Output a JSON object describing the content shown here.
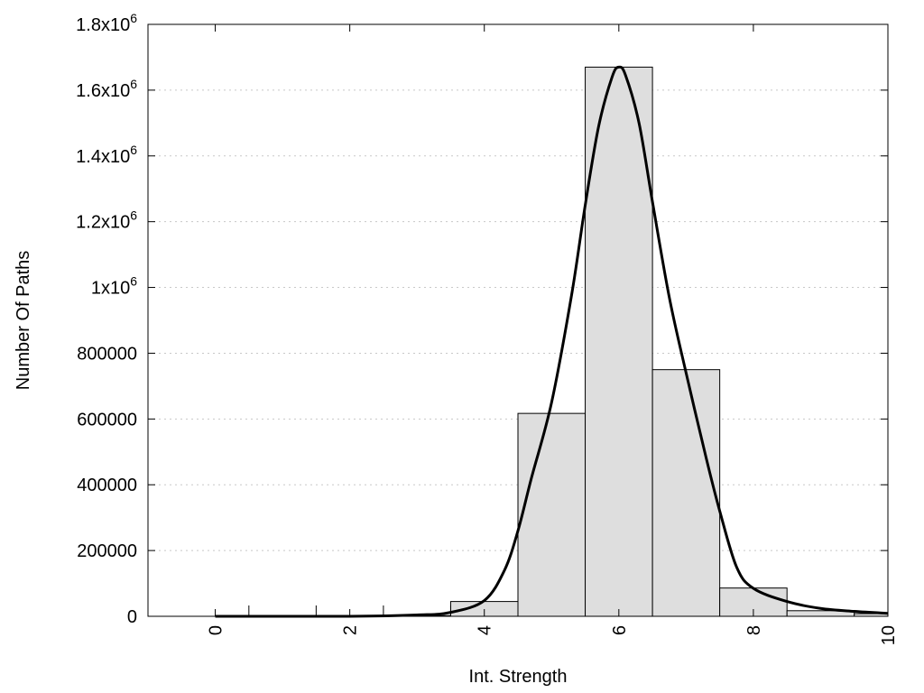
{
  "chart_data": {
    "type": "bar",
    "xlabel": "Int. Strength",
    "ylabel": "Number Of Paths",
    "xlim": [
      -1,
      10
    ],
    "ylim": [
      0,
      1800000
    ],
    "grid": "horizontal dotted",
    "x_ticks": [
      {
        "value": 0,
        "label": "0"
      },
      {
        "value": 2,
        "label": "2"
      },
      {
        "value": 4,
        "label": "4"
      },
      {
        "value": 6,
        "label": "6"
      },
      {
        "value": 8,
        "label": "8"
      },
      {
        "value": 10,
        "label": "10"
      }
    ],
    "y_ticks": [
      {
        "value": 0,
        "base": "0",
        "exp": ""
      },
      {
        "value": 200000,
        "base": "200000",
        "exp": ""
      },
      {
        "value": 400000,
        "base": "400000",
        "exp": ""
      },
      {
        "value": 600000,
        "base": "600000",
        "exp": ""
      },
      {
        "value": 800000,
        "base": "800000",
        "exp": ""
      },
      {
        "value": 1000000,
        "base": "1x10",
        "exp": "6"
      },
      {
        "value": 1200000,
        "base": "1.2x10",
        "exp": "6"
      },
      {
        "value": 1400000,
        "base": "1.4x10",
        "exp": "6"
      },
      {
        "value": 1600000,
        "base": "1.6x10",
        "exp": "6"
      },
      {
        "value": 1800000,
        "base": "1.8x10",
        "exp": "6"
      }
    ],
    "bars": [
      {
        "x": 0,
        "value": 0
      },
      {
        "x": 1,
        "value": 0
      },
      {
        "x": 2,
        "value": 500
      },
      {
        "x": 3,
        "value": 2000
      },
      {
        "x": 4,
        "value": 45000
      },
      {
        "x": 5,
        "value": 617000
      },
      {
        "x": 6,
        "value": 1670000
      },
      {
        "x": 7,
        "value": 750000
      },
      {
        "x": 8,
        "value": 86000
      },
      {
        "x": 9,
        "value": 17000
      },
      {
        "x": 10,
        "value": 8000
      }
    ],
    "fit_curve": [
      {
        "x": 0,
        "y": 0
      },
      {
        "x": 2,
        "y": 0
      },
      {
        "x": 3,
        "y": 4000
      },
      {
        "x": 3.5,
        "y": 12000
      },
      {
        "x": 4,
        "y": 48000
      },
      {
        "x": 4.3,
        "y": 140000
      },
      {
        "x": 4.5,
        "y": 260000
      },
      {
        "x": 4.7,
        "y": 420000
      },
      {
        "x": 5.0,
        "y": 650000
      },
      {
        "x": 5.3,
        "y": 980000
      },
      {
        "x": 5.5,
        "y": 1250000
      },
      {
        "x": 5.7,
        "y": 1490000
      },
      {
        "x": 5.9,
        "y": 1640000
      },
      {
        "x": 6.0,
        "y": 1670000
      },
      {
        "x": 6.1,
        "y": 1645000
      },
      {
        "x": 6.3,
        "y": 1500000
      },
      {
        "x": 6.5,
        "y": 1260000
      },
      {
        "x": 6.75,
        "y": 970000
      },
      {
        "x": 7.0,
        "y": 740000
      },
      {
        "x": 7.3,
        "y": 480000
      },
      {
        "x": 7.5,
        "y": 320000
      },
      {
        "x": 7.75,
        "y": 150000
      },
      {
        "x": 8.0,
        "y": 85000
      },
      {
        "x": 8.5,
        "y": 45000
      },
      {
        "x": 9.0,
        "y": 24000
      },
      {
        "x": 9.5,
        "y": 15000
      },
      {
        "x": 10.0,
        "y": 9000
      }
    ]
  }
}
